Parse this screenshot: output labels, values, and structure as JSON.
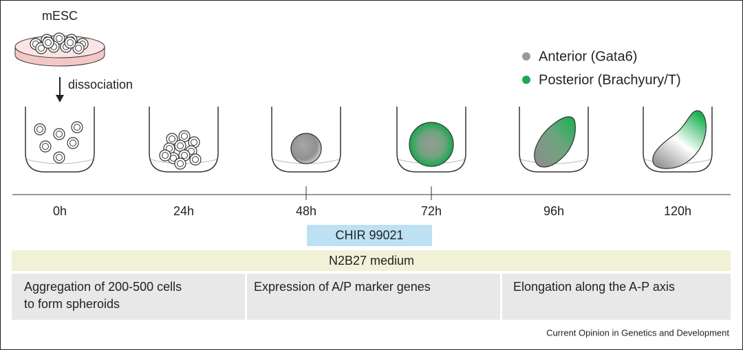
{
  "source_label": "mESC",
  "step_label": "dissociation",
  "legend": [
    "Anterior (Gata6)",
    "Posterior (Brachyury/T)"
  ],
  "timepoints": [
    "0h",
    "24h",
    "48h",
    "72h",
    "96h",
    "120h"
  ],
  "treatment": "CHIR 99021",
  "medium": "N2B27 medium",
  "phases": [
    {
      "lines": [
        "Aggregation of 200-500 cells",
        "to form spheroids"
      ]
    },
    {
      "lines": [
        "Expression of A/P marker genes"
      ]
    },
    {
      "lines": [
        "Elongation along the A-P axis"
      ]
    }
  ],
  "credit": "Current Opinion in Genetics and Development"
}
